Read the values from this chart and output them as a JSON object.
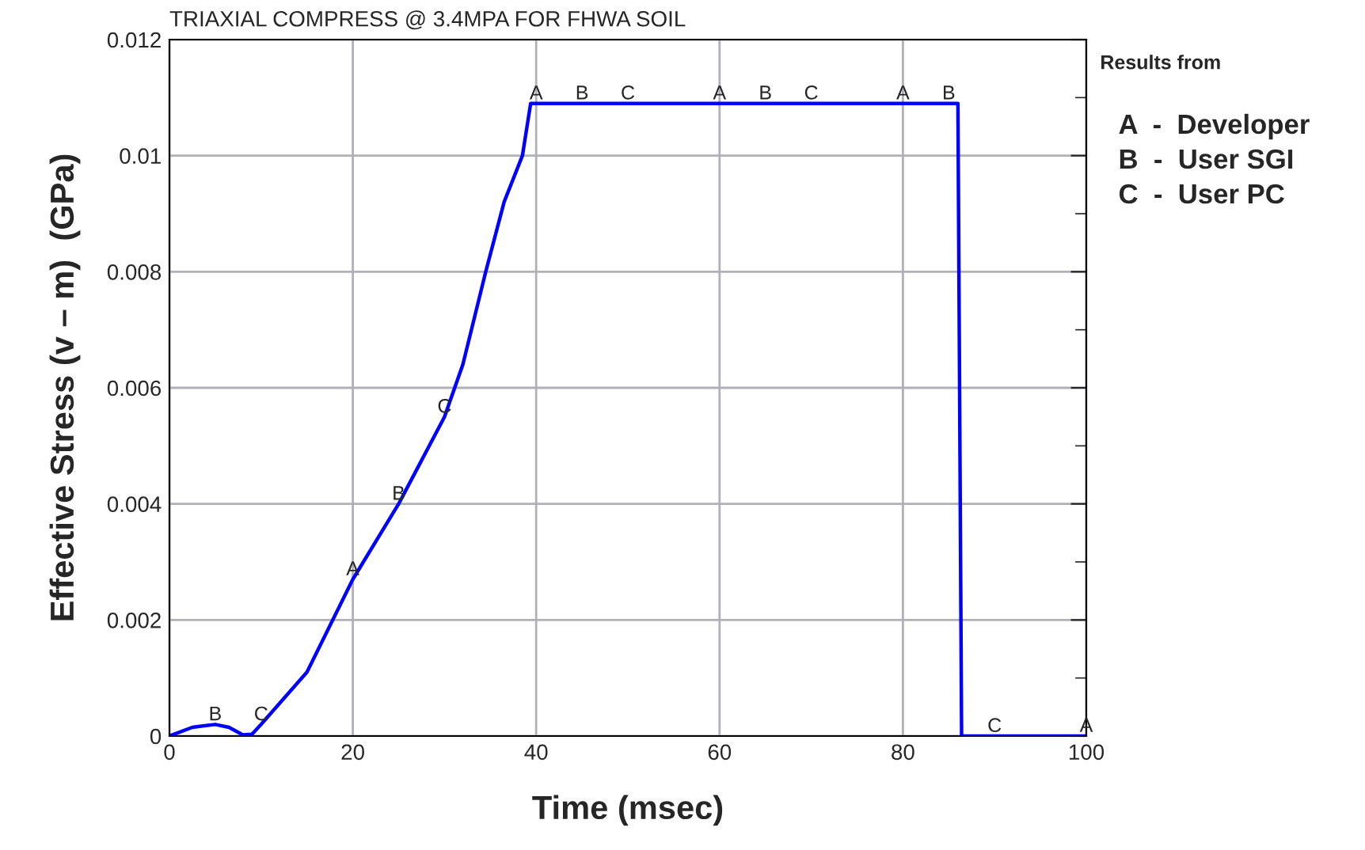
{
  "chart_data": {
    "type": "line",
    "title": "TRIAXIAL COMPRESS @ 3.4MPA FOR FHWA SOIL",
    "xlabel": "Time (msec)",
    "ylabel": "Effective Stress (v – m)  (GPa)",
    "x": [
      0,
      2.5,
      5,
      6.5,
      8,
      9,
      10,
      15,
      20,
      25,
      30,
      32,
      34.5,
      36.5,
      38.5,
      39.4,
      86,
      86.4,
      100
    ],
    "series": [
      {
        "color": "#0000ff",
        "values": [
          0,
          0.00015,
          0.0002,
          0.00015,
          2e-05,
          3e-05,
          0.0002,
          0.0011,
          0.0027,
          0.004,
          0.0055,
          0.0064,
          0.008,
          0.0092,
          0.01,
          0.0109,
          0.0109,
          0,
          0
        ]
      }
    ],
    "xlim": [
      0,
      100
    ],
    "xticks": [
      0,
      20,
      40,
      60,
      80,
      100
    ],
    "ylim": [
      0,
      0.012
    ],
    "yticks": [
      0,
      0.002,
      0.004,
      0.006,
      0.008,
      0.01,
      0.012
    ],
    "grid": true,
    "annotations": [
      {
        "text": "B",
        "x": 5,
        "y": 0.0002
      },
      {
        "text": "C",
        "x": 10,
        "y": 0.0002
      },
      {
        "text": "A",
        "x": 20,
        "y": 0.0027
      },
      {
        "text": "B",
        "x": 25,
        "y": 0.004
      },
      {
        "text": "C",
        "x": 30,
        "y": 0.0055
      },
      {
        "text": "A",
        "x": 40,
        "y": 0.0109
      },
      {
        "text": "B",
        "x": 45,
        "y": 0.0109
      },
      {
        "text": "C",
        "x": 50,
        "y": 0.0109
      },
      {
        "text": "A",
        "x": 60,
        "y": 0.0109
      },
      {
        "text": "B",
        "x": 65,
        "y": 0.0109
      },
      {
        "text": "C",
        "x": 70,
        "y": 0.0109
      },
      {
        "text": "A",
        "x": 80,
        "y": 0.0109
      },
      {
        "text": "B",
        "x": 85,
        "y": 0.0109
      },
      {
        "text": "C",
        "x": 90,
        "y": 0
      },
      {
        "text": "A",
        "x": 100,
        "y": 0
      },
      "Results from",
      "A  -  Developer",
      "B  -  User SGI",
      "C  -  User PC"
    ]
  }
}
